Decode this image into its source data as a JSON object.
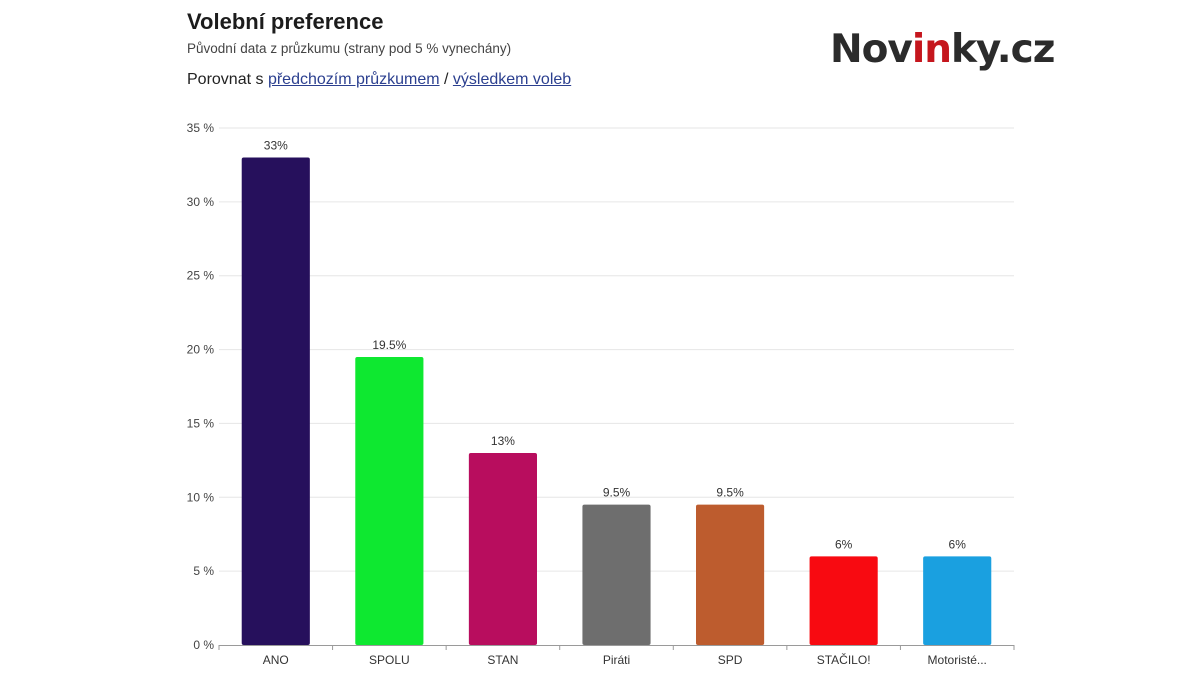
{
  "header": {
    "title": "Volební preference",
    "subtitle": "Původní data z průzkumu (strany pod 5 % vynechány)",
    "compare_prefix": "Porovnat s ",
    "compare_link_previous": "předchozím průzkumem",
    "compare_separator": " / ",
    "compare_link_election": "výsledkem voleb"
  },
  "logo": {
    "text_start": "Nov",
    "text_accent": "in",
    "text_end": "ky.cz",
    "accent_color": "#c5161d"
  },
  "chart_data": {
    "type": "bar",
    "categories": [
      "ANO",
      "SPOLU",
      "STAN",
      "Piráti",
      "SPD",
      "STAČILO!",
      "Motoristé..."
    ],
    "values": [
      33,
      19.5,
      13,
      9.5,
      9.5,
      6,
      6
    ],
    "value_labels": [
      "33%",
      "19.5%",
      "13%",
      "9.5%",
      "9.5%",
      "6%",
      "6%"
    ],
    "colors": [
      "#26105c",
      "#0ee830",
      "#b80d5e",
      "#6e6e6e",
      "#bd5c2e",
      "#f80a11",
      "#1aa0e0"
    ],
    "ylim": [
      0,
      35
    ],
    "yticks": [
      0,
      5,
      10,
      15,
      20,
      25,
      30,
      35
    ],
    "ytick_labels": [
      "0 %",
      "5 %",
      "10 %",
      "15 %",
      "20 %",
      "25 %",
      "30 %",
      "35 %"
    ],
    "grid": true,
    "title": "",
    "xlabel": "",
    "ylabel": ""
  }
}
